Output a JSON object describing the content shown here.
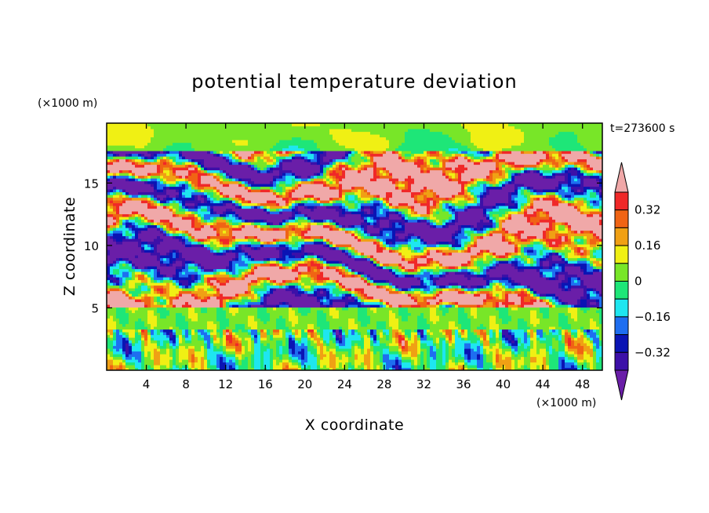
{
  "chart_data": {
    "type": "heatmap",
    "title": "potential temperature deviation",
    "xlabel": "X coordinate",
    "ylabel": "Z coordinate",
    "x_unit": "(×1000 m)",
    "y_unit": "(×1000 m)",
    "time_label": "t=273600 s",
    "xlim": [
      0,
      50
    ],
    "ylim": [
      0,
      19.8
    ],
    "x_ticks": [
      4,
      8,
      12,
      16,
      20,
      24,
      28,
      32,
      36,
      40,
      44,
      48
    ],
    "y_ticks": [
      5,
      10,
      15
    ],
    "colorbar": {
      "levels": [
        -0.4,
        -0.32,
        -0.24,
        -0.16,
        -0.08,
        0,
        0.08,
        0.16,
        0.24,
        0.32,
        0.4
      ],
      "labeled_levels": [
        -0.32,
        -0.16,
        0,
        0.16,
        0.32
      ],
      "labels": [
        "−0.32",
        "−0.16",
        "0",
        "0.16",
        "0.32"
      ],
      "colors": [
        "#6a1ea8",
        "#3c10a8",
        "#0a14b4",
        "#1e6ef0",
        "#1ee6f0",
        "#1ee678",
        "#78e628",
        "#f0f014",
        "#f0a014",
        "#f06414",
        "#f02828",
        "#f0a8a8"
      ],
      "extend": "both"
    },
    "field_description": {
      "lower_layer_z": [
        0,
        5
      ],
      "upper_layer_z": [
        5,
        17.5
      ],
      "quiet_top_z": [
        17.5,
        19.8
      ]
    }
  }
}
